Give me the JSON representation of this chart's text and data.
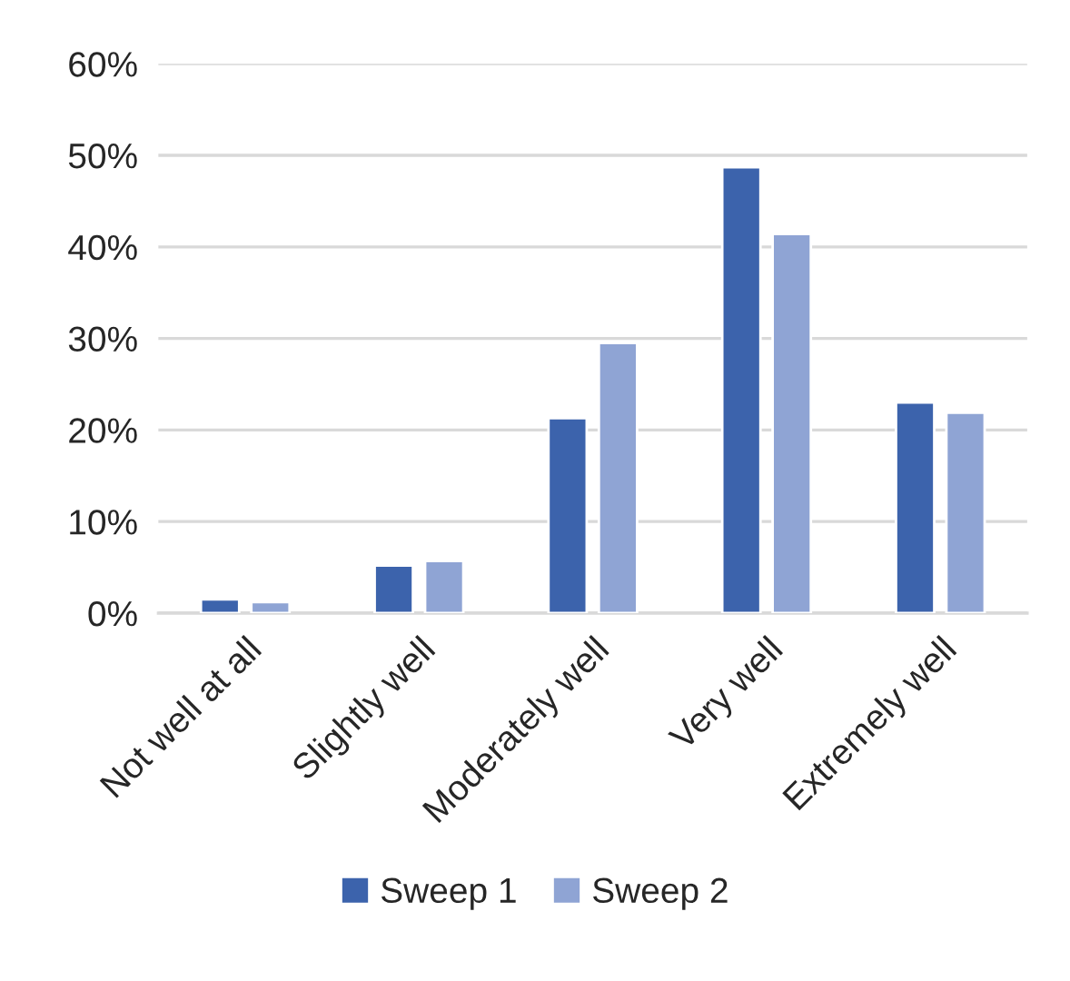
{
  "chart_data": {
    "type": "bar",
    "categories": [
      "Not well at all",
      "Slightly well",
      "Moderately well",
      "Very well",
      "Extremely well"
    ],
    "series": [
      {
        "name": "Sweep 1",
        "color": "#3c63ac",
        "values": [
          1.5,
          5.2,
          21.3,
          48.7,
          23.0
        ]
      },
      {
        "name": "Sweep 2",
        "color": "#8fa4d4",
        "values": [
          1.2,
          5.7,
          29.5,
          41.4,
          21.9
        ]
      }
    ],
    "ylim": [
      0,
      60
    ],
    "yticks": [
      {
        "value": 0,
        "label": "0%"
      },
      {
        "value": 10,
        "label": "10%"
      },
      {
        "value": 20,
        "label": "20%"
      },
      {
        "value": 30,
        "label": "30%"
      },
      {
        "value": 40,
        "label": "40%"
      },
      {
        "value": 50,
        "label": "50%"
      },
      {
        "value": 60,
        "label": "60%"
      }
    ],
    "grid": "y",
    "legend": "bottom"
  }
}
